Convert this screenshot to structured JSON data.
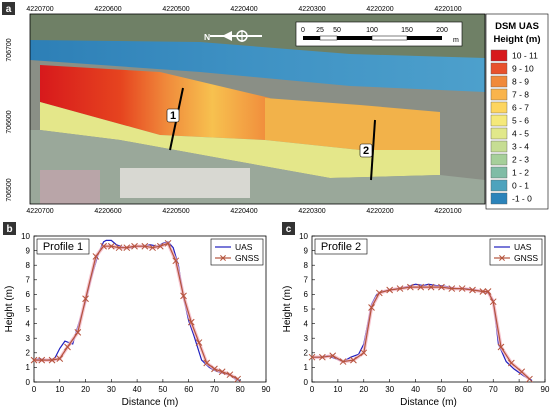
{
  "map": {
    "panel_label": "a",
    "top_ticks": [
      "4220700",
      "4220600",
      "4220500",
      "4220400",
      "4220300",
      "4220200",
      "4220100"
    ],
    "bottom_ticks": [
      "4220700",
      "4220600",
      "4220500",
      "4220400",
      "4220300",
      "4220200",
      "4220100"
    ],
    "left_ticks": [
      "706700",
      "706600",
      "706500"
    ],
    "scale_labels": [
      "0",
      "25",
      "50",
      "100",
      "150",
      "200"
    ],
    "scale_unit": "m",
    "north_letter": "N",
    "legend_title_1": "DSM UAS",
    "legend_title_2": "Height (m)",
    "legend_items": [
      {
        "label": "10 - 11",
        "color": "#d7191c"
      },
      {
        "label": "9 - 10",
        "color": "#e8512c"
      },
      {
        "label": "8 - 9",
        "color": "#f08a3b"
      },
      {
        "label": "7 - 8",
        "color": "#f9b44c"
      },
      {
        "label": "6 - 7",
        "color": "#fdd55f"
      },
      {
        "label": "5 - 6",
        "color": "#f5e97a"
      },
      {
        "label": "4 - 5",
        "color": "#e1e88a"
      },
      {
        "label": "3 - 4",
        "color": "#c6dd93"
      },
      {
        "label": "2 - 3",
        "color": "#a6cf9a"
      },
      {
        "label": "1 - 2",
        "color": "#80bca6"
      },
      {
        "label": "0 - 1",
        "color": "#4ea3bd"
      },
      {
        "label": "-1 - 0",
        "color": "#2b83ba"
      }
    ],
    "profile_labels": [
      "1",
      "2"
    ]
  },
  "chart_data": [
    {
      "type": "line",
      "panel_label": "b",
      "title": "Profile 1",
      "xlabel": "Distance (m)",
      "ylabel": "Height (m)",
      "xlim": [
        0,
        90
      ],
      "ylim": [
        0,
        10
      ],
      "xticks": [
        0,
        10,
        20,
        30,
        40,
        50,
        60,
        70,
        80,
        90
      ],
      "yticks": [
        0,
        1,
        2,
        3,
        4,
        5,
        6,
        7,
        8,
        9,
        10
      ],
      "series": [
        {
          "name": "UAS",
          "color": "#1f1fbf",
          "marker": "none",
          "x": [
            0,
            2,
            5,
            8,
            10,
            12,
            15,
            17,
            20,
            22,
            25,
            27,
            28,
            30,
            32,
            35,
            38,
            40,
            43,
            45,
            48,
            50,
            52,
            54,
            56,
            58,
            60,
            62,
            65,
            68,
            70,
            73,
            76,
            78,
            80
          ],
          "y": [
            1.5,
            1.6,
            1.5,
            1.6,
            2.3,
            2.8,
            2.6,
            3.8,
            5.5,
            7.0,
            8.8,
            9.6,
            9.7,
            9.7,
            9.4,
            9.2,
            9.2,
            9.3,
            9.3,
            9.4,
            9.3,
            9.5,
            9.6,
            9.2,
            8.0,
            5.8,
            4.2,
            3.2,
            1.5,
            1.0,
            0.8,
            0.6,
            0.5,
            0.2,
            0.1
          ]
        },
        {
          "name": "GNSS",
          "color": "#b5533c",
          "marker": "x",
          "x": [
            0,
            3,
            7,
            10,
            13,
            17,
            20,
            24,
            27,
            30,
            33,
            36,
            39,
            43,
            46,
            49,
            52,
            55,
            58,
            61,
            64,
            67,
            70,
            73,
            76,
            79
          ],
          "y": [
            1.5,
            1.5,
            1.5,
            1.6,
            2.4,
            3.4,
            5.7,
            8.6,
            9.3,
            9.3,
            9.2,
            9.2,
            9.3,
            9.3,
            9.2,
            9.3,
            9.5,
            8.3,
            5.9,
            4.1,
            2.7,
            1.3,
            0.9,
            0.7,
            0.5,
            0.2
          ]
        }
      ]
    },
    {
      "type": "line",
      "panel_label": "c",
      "title": "Profile 2",
      "xlabel": "Distance (m)",
      "ylabel": "Height (m)",
      "xlim": [
        0,
        90
      ],
      "ylim": [
        0,
        10
      ],
      "xticks": [
        0,
        10,
        20,
        30,
        40,
        50,
        60,
        70,
        80,
        90
      ],
      "yticks": [
        0,
        1,
        2,
        3,
        4,
        5,
        6,
        7,
        8,
        9,
        10
      ],
      "series": [
        {
          "name": "UAS",
          "color": "#1f1fbf",
          "marker": "none",
          "x": [
            0,
            3,
            6,
            9,
            12,
            15,
            18,
            20,
            23,
            25,
            27,
            30,
            33,
            36,
            40,
            43,
            45,
            48,
            50,
            53,
            56,
            60,
            63,
            66,
            68,
            70,
            72,
            75,
            78,
            82,
            85
          ],
          "y": [
            1.7,
            1.7,
            1.8,
            1.6,
            1.4,
            1.7,
            1.9,
            2.6,
            5.3,
            6.0,
            6.2,
            6.3,
            6.4,
            6.5,
            6.7,
            6.6,
            6.7,
            6.6,
            6.6,
            6.5,
            6.4,
            6.4,
            6.3,
            6.2,
            6.1,
            5.6,
            2.6,
            1.4,
            0.9,
            0.4,
            0.1
          ]
        },
        {
          "name": "GNSS",
          "color": "#b5533c",
          "marker": "x",
          "x": [
            0,
            4,
            8,
            12,
            16,
            20,
            23,
            26,
            30,
            34,
            38,
            42,
            46,
            50,
            54,
            58,
            62,
            66,
            68,
            70,
            73,
            77,
            81,
            84
          ],
          "y": [
            1.7,
            1.7,
            1.8,
            1.4,
            1.5,
            2.0,
            5.1,
            6.1,
            6.3,
            6.4,
            6.5,
            6.5,
            6.5,
            6.5,
            6.4,
            6.4,
            6.3,
            6.2,
            6.2,
            5.5,
            2.4,
            1.3,
            0.7,
            0.2
          ]
        }
      ]
    }
  ]
}
